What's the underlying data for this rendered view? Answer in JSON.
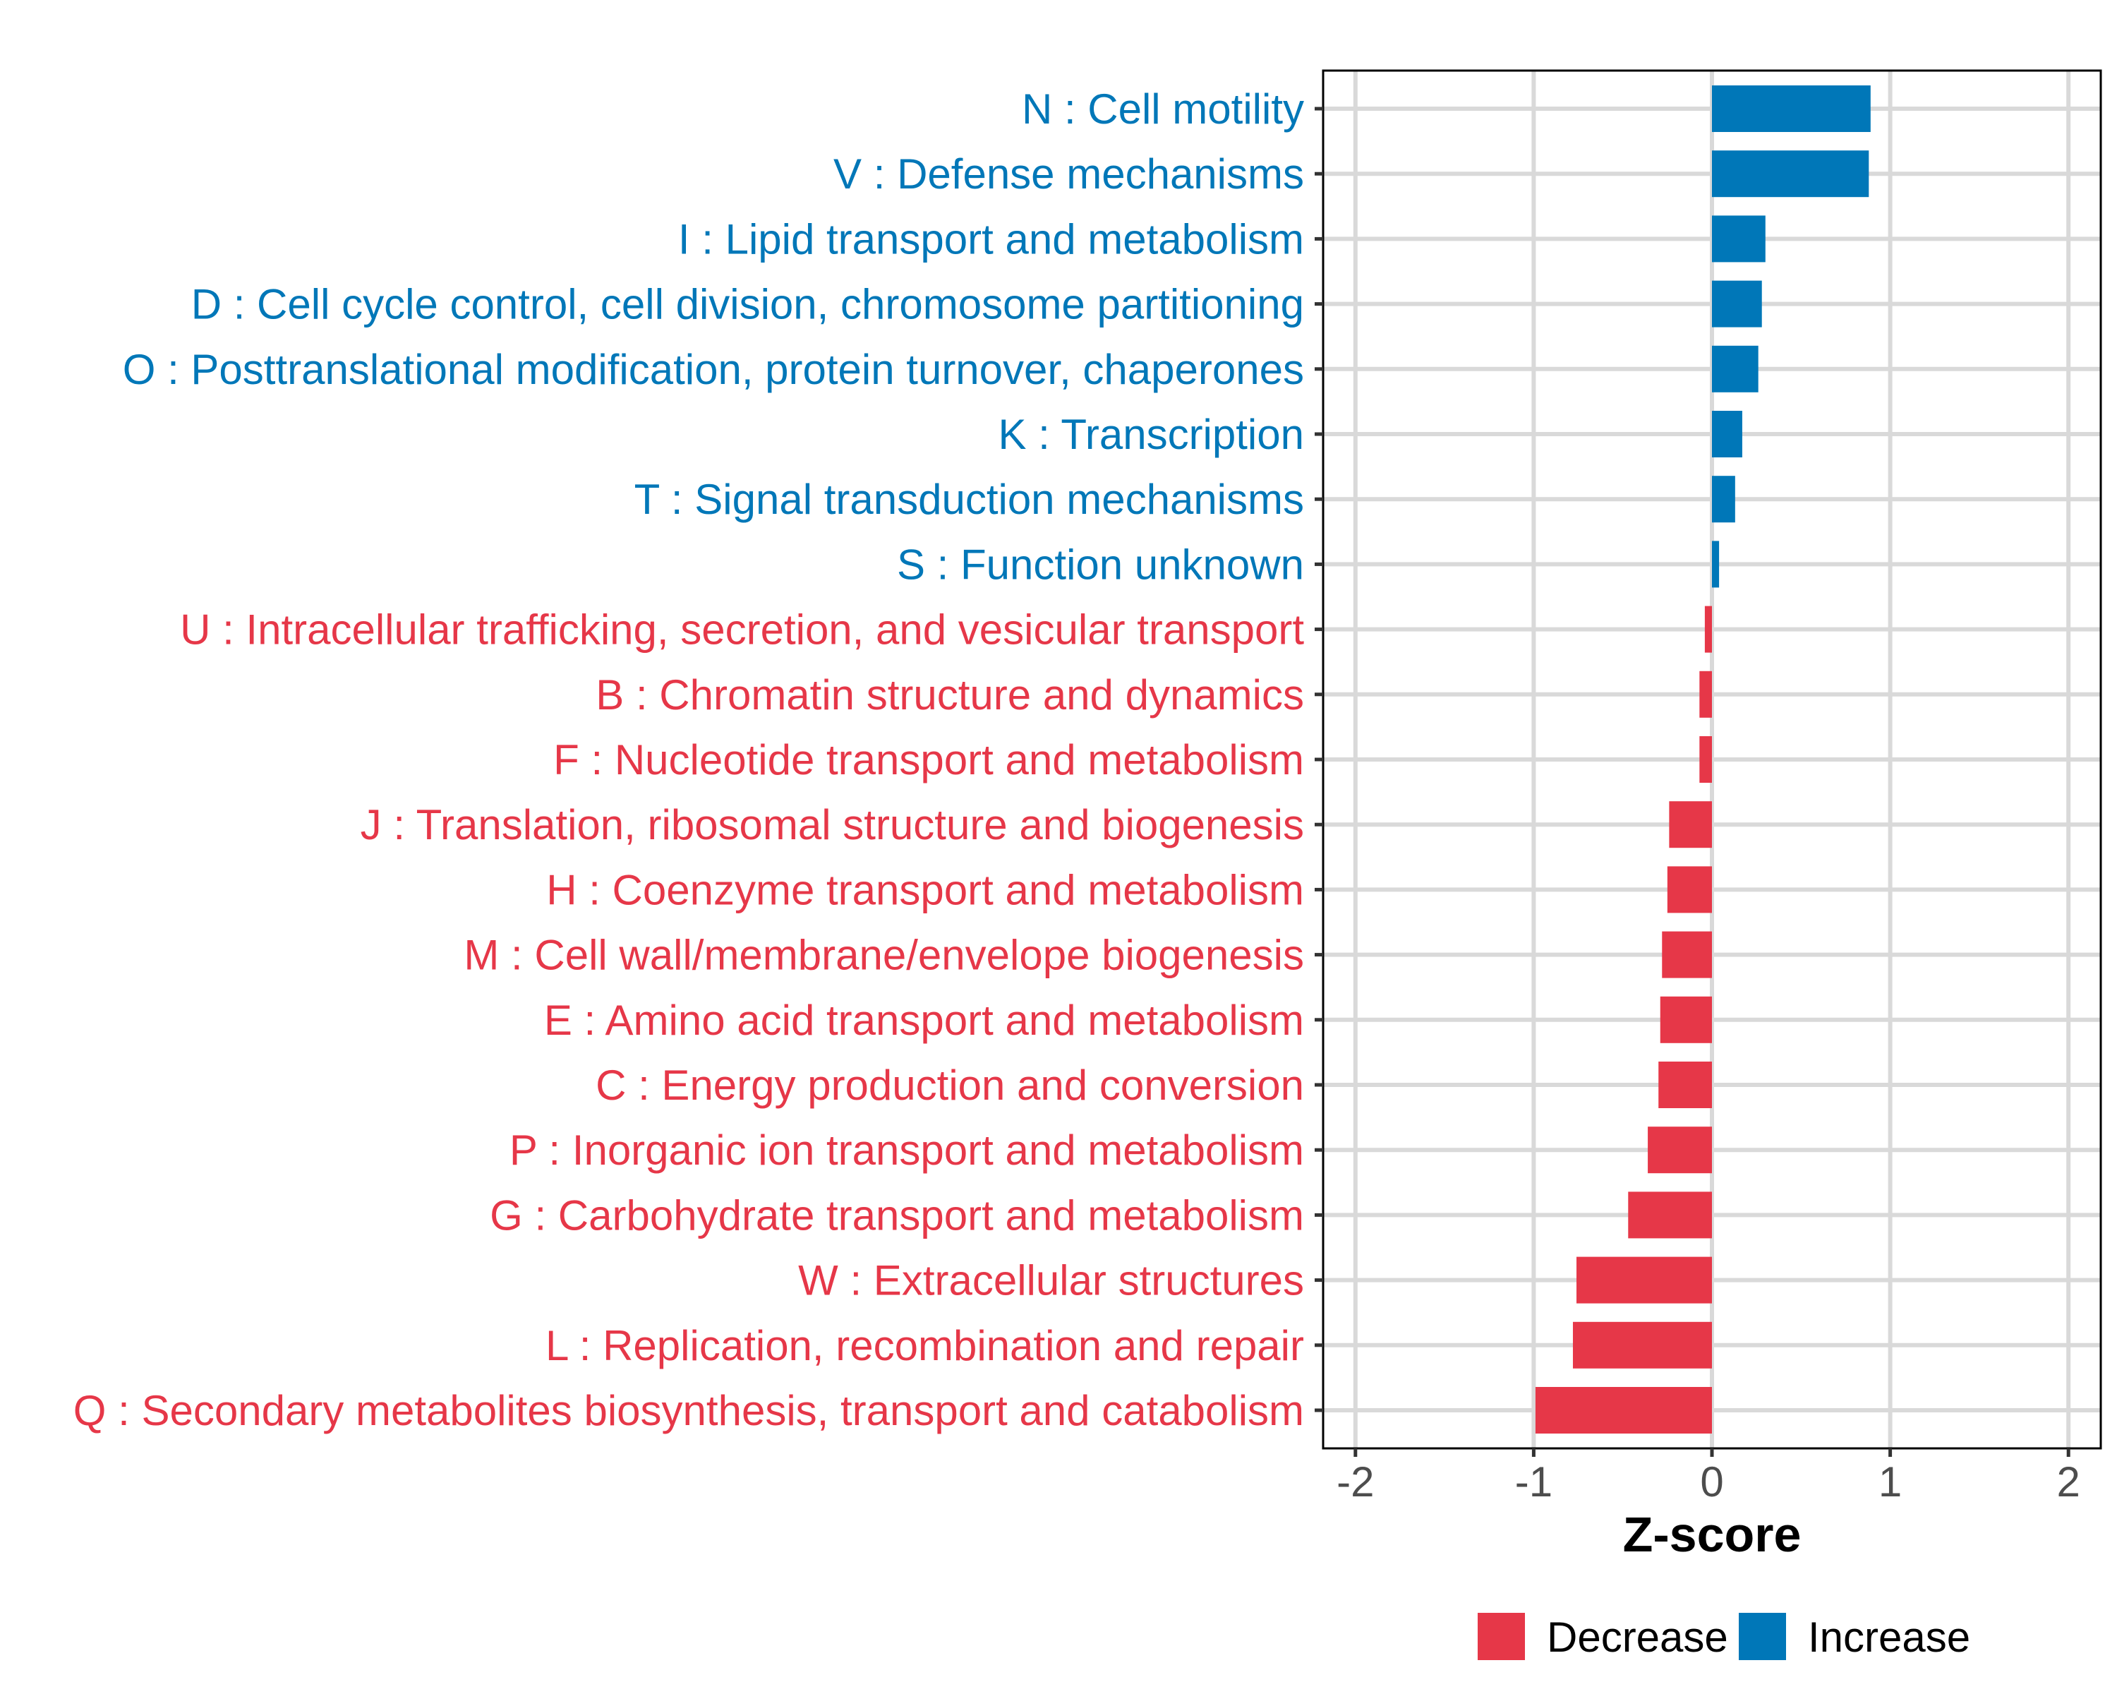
{
  "chart_data": {
    "type": "bar",
    "orientation": "horizontal",
    "title": "",
    "xlabel": "Z-score",
    "ylabel": "",
    "xlim": [
      -2.2,
      2.2
    ],
    "xticks": [
      -2,
      -1,
      0,
      1,
      2
    ],
    "xtick_labels": [
      "-2",
      "-1",
      "0",
      "1",
      "2"
    ],
    "grid": true,
    "legend_position": "bottom",
    "colors": {
      "Decrease": "#E63748",
      "Increase": "#0077B8"
    },
    "legend": [
      {
        "label": "Decrease",
        "color": "#E63748"
      },
      {
        "label": "Increase",
        "color": "#0077B8"
      }
    ],
    "categories": [
      "N : Cell motility",
      "V : Defense mechanisms",
      "I : Lipid transport and metabolism",
      "D : Cell cycle control, cell division, chromosome partitioning",
      "O : Posttranslational modification, protein turnover, chaperones",
      "K : Transcription",
      "T : Signal transduction mechanisms",
      "S : Function unknown",
      "U : Intracellular trafficking, secretion, and vesicular transport",
      "B : Chromatin structure and dynamics",
      "F : Nucleotide transport and metabolism",
      "J : Translation, ribosomal structure and biogenesis",
      "H : Coenzyme transport and metabolism",
      "M : Cell wall/membrane/envelope biogenesis",
      "E : Amino acid transport and metabolism",
      "C : Energy production and conversion",
      "P : Inorganic ion transport and metabolism",
      "G : Carbohydrate transport and metabolism",
      "W : Extracellular structures",
      "L : Replication, recombination and repair",
      "Q : Secondary metabolites biosynthesis, transport and catabolism"
    ],
    "values": [
      0.89,
      0.88,
      0.3,
      0.28,
      0.26,
      0.17,
      0.13,
      0.04,
      -0.04,
      -0.07,
      -0.07,
      -0.24,
      -0.25,
      -0.28,
      -0.29,
      -0.3,
      -0.36,
      -0.47,
      -0.76,
      -0.78,
      -0.99
    ],
    "groups": [
      "Increase",
      "Increase",
      "Increase",
      "Increase",
      "Increase",
      "Increase",
      "Increase",
      "Increase",
      "Decrease",
      "Decrease",
      "Decrease",
      "Decrease",
      "Decrease",
      "Decrease",
      "Decrease",
      "Decrease",
      "Decrease",
      "Decrease",
      "Decrease",
      "Decrease",
      "Decrease"
    ]
  }
}
